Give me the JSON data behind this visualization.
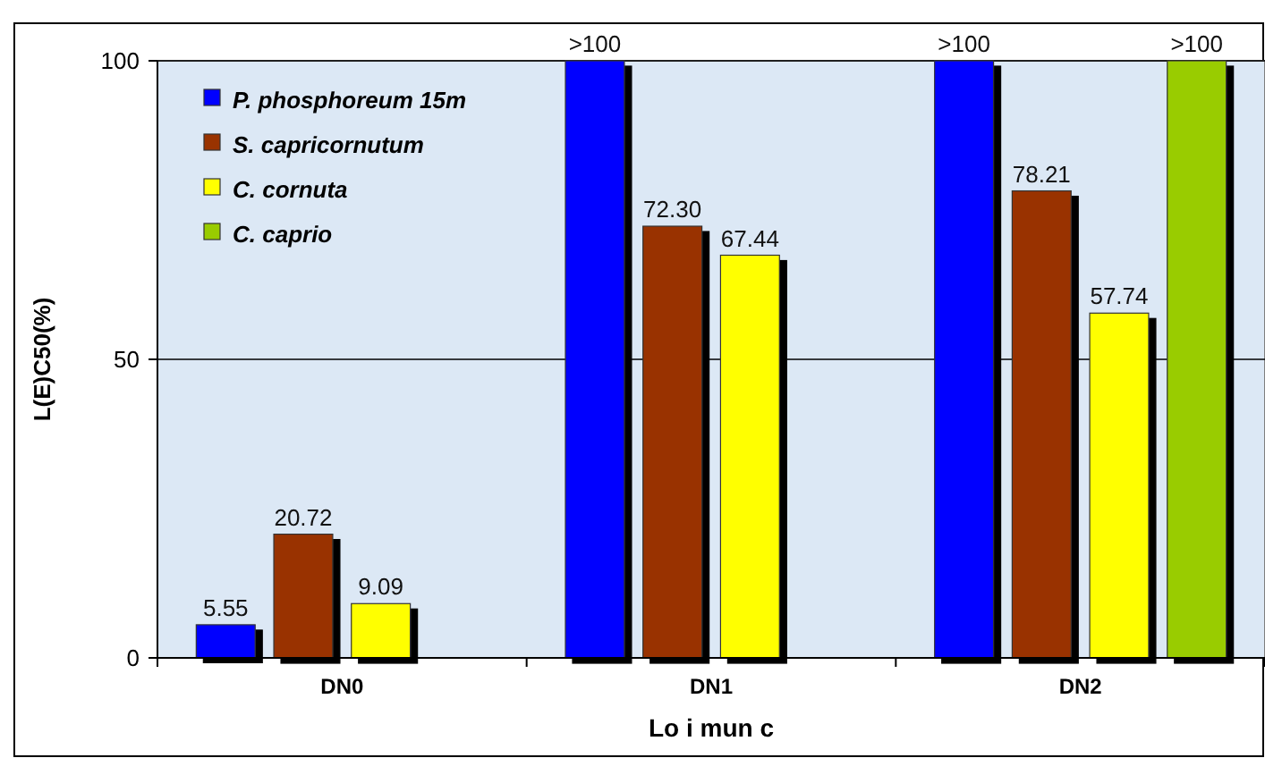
{
  "chart_data": {
    "type": "bar",
    "xlabel": "Lo i mun c",
    "ylabel": "L(E)C50(%)",
    "categories": [
      "DN0",
      "DN1",
      "DN2"
    ],
    "series": [
      {
        "name": "P. phosphoreum 15m",
        "color": "#0000ff",
        "values": [
          5.55,
          100,
          100
        ],
        "value_labels": [
          "5.55",
          ">100",
          ">100"
        ]
      },
      {
        "name": "S. capricornutum",
        "color": "#993300",
        "values": [
          20.72,
          72.3,
          78.21
        ],
        "value_labels": [
          "20.72",
          "72.30",
          "78.21"
        ]
      },
      {
        "name": "C. cornuta",
        "color": "#ffff00",
        "values": [
          9.09,
          67.44,
          57.74
        ],
        "value_labels": [
          "9.09",
          "67.44",
          "57.74"
        ]
      },
      {
        "name": "C. caprio",
        "color": "#99cc00",
        "values": [
          null,
          null,
          100
        ],
        "value_labels": [
          null,
          null,
          ">100"
        ]
      }
    ],
    "ylim": [
      0,
      100
    ],
    "yticks": [
      0,
      50,
      100
    ],
    "grid": "y",
    "legend": "top left"
  }
}
